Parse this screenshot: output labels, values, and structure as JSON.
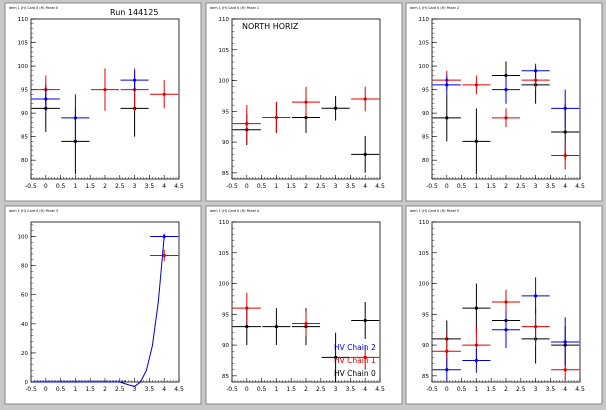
{
  "window": {
    "background": "#c8c8c8",
    "pad_background": "#ffffff",
    "frame_color": "#000000"
  },
  "colors": {
    "black": "#000000",
    "red": "#e00000",
    "blue": "#0000e0",
    "fit": "#0000cc"
  },
  "chart_data": [
    {
      "type": "scatter",
      "pad_title": "dem 1 (H) Card 0 (H) Panel 0",
      "title": "Run 144125",
      "xlim": [
        -0.5,
        4.5
      ],
      "ylim": [
        76,
        110
      ],
      "xticks": [
        "-0.5",
        "0",
        "0.5",
        "1",
        "1.5",
        "2",
        "2.5",
        "3",
        "3.5",
        "4",
        "4.5"
      ],
      "yticks": [
        "80",
        "85",
        "90",
        "95",
        "100",
        "105",
        "110"
      ],
      "series": [
        {
          "color": "black",
          "points": [
            {
              "x": 0,
              "y": 91,
              "yerr": 5
            },
            {
              "x": 1,
              "y": 84,
              "yerr": 7
            },
            {
              "x": 3,
              "y": 91,
              "yerr": 6
            }
          ]
        },
        {
          "color": "red",
          "points": [
            {
              "x": 0,
              "y": 95,
              "yerr": 3
            },
            {
              "x": 2,
              "y": 95,
              "yerr": 4.5
            },
            {
              "x": 3,
              "y": 95,
              "yerr": 4.5
            },
            {
              "x": 4,
              "y": 94,
              "yerr": 3
            }
          ]
        },
        {
          "color": "blue",
          "points": [
            {
              "x": 0,
              "y": 93,
              "yerr": 2.5
            },
            {
              "x": 1,
              "y": 89,
              "yerr": 5
            },
            {
              "x": 3,
              "y": 97,
              "yerr": 2
            }
          ]
        }
      ]
    },
    {
      "type": "scatter",
      "pad_title": "dem 1 (H) Card 0 (H) Panel 1",
      "title": "NORTH HORIZ",
      "xlim": [
        -0.5,
        4.5
      ],
      "ylim": [
        84,
        110
      ],
      "xticks": [
        "-0.5",
        "0",
        "0.5",
        "1",
        "1.5",
        "2",
        "2.5",
        "3",
        "3.5",
        "4",
        "4.5"
      ],
      "yticks": [
        "85",
        "90",
        "95",
        "100",
        "105",
        "110"
      ],
      "series": [
        {
          "color": "black",
          "points": [
            {
              "x": 0,
              "y": 92,
              "yerr": 2.5
            },
            {
              "x": 1,
              "y": 94,
              "yerr": 2.5
            },
            {
              "x": 2,
              "y": 94,
              "yerr": 2.5
            },
            {
              "x": 3,
              "y": 95.5,
              "yerr": 2
            },
            {
              "x": 4,
              "y": 88,
              "yerr": 3
            }
          ]
        },
        {
          "color": "red",
          "points": [
            {
              "x": 0,
              "y": 93,
              "yerr": 3
            },
            {
              "x": 1,
              "y": 94,
              "yerr": 2.5
            },
            {
              "x": 2,
              "y": 96.5,
              "yerr": 2.5
            },
            {
              "x": 4,
              "y": 97,
              "yerr": 2
            }
          ]
        }
      ]
    },
    {
      "type": "scatter",
      "pad_title": "dem 1 (H) Card 0 (H) Panel 2",
      "title": "",
      "xlim": [
        -0.5,
        4.5
      ],
      "ylim": [
        76,
        110
      ],
      "xticks": [
        "-0.5",
        "0",
        "0.5",
        "1",
        "1.5",
        "2",
        "2.5",
        "3",
        "3.5",
        "4",
        "4.5"
      ],
      "yticks": [
        "80",
        "85",
        "90",
        "95",
        "100",
        "105",
        "110"
      ],
      "series": [
        {
          "color": "black",
          "points": [
            {
              "x": 0,
              "y": 89,
              "yerr": 5
            },
            {
              "x": 1,
              "y": 84,
              "yerr": 7
            },
            {
              "x": 2,
              "y": 98,
              "yerr": 3
            },
            {
              "x": 3,
              "y": 96,
              "yerr": 4
            },
            {
              "x": 4,
              "y": 86,
              "yerr": 6
            }
          ]
        },
        {
          "color": "red",
          "points": [
            {
              "x": 0,
              "y": 97,
              "yerr": 2
            },
            {
              "x": 1,
              "y": 96,
              "yerr": 2
            },
            {
              "x": 2,
              "y": 89,
              "yerr": 2
            },
            {
              "x": 3,
              "y": 97,
              "yerr": 2
            },
            {
              "x": 4,
              "y": 81,
              "yerr": 3
            }
          ]
        },
        {
          "color": "blue",
          "points": [
            {
              "x": 0,
              "y": 96,
              "yerr": 2
            },
            {
              "x": 2,
              "y": 95,
              "yerr": 3
            },
            {
              "x": 3,
              "y": 99,
              "yerr": 1.5
            },
            {
              "x": 4,
              "y": 91,
              "yerr": 4
            }
          ]
        }
      ]
    },
    {
      "type": "line",
      "pad_title": "dem 1 (H) Card 0 (H) Panel 3",
      "title": "",
      "xlim": [
        -0.5,
        4.5
      ],
      "ylim": [
        0,
        110
      ],
      "xticks": [
        "-0.5",
        "0",
        "0.5",
        "1",
        "1.5",
        "2",
        "2.5",
        "3",
        "3.5",
        "4",
        "4.5"
      ],
      "yticks": [
        "0",
        "20",
        "40",
        "60",
        "80",
        "100"
      ],
      "series": [
        {
          "color": "red",
          "points": [
            {
              "x": 4,
              "y": 87,
              "yerr": 4
            }
          ]
        },
        {
          "color": "blue",
          "points": [
            {
              "x": 4,
              "y": 100,
              "yerr": 2
            }
          ]
        }
      ],
      "fit": {
        "color": "fit",
        "points": [
          [
            -0.4,
            0
          ],
          [
            0,
            0
          ],
          [
            0.5,
            0
          ],
          [
            1,
            0
          ],
          [
            1.5,
            0
          ],
          [
            2,
            0
          ],
          [
            2.5,
            0
          ],
          [
            2.8,
            -2
          ],
          [
            3.0,
            -3
          ],
          [
            3.2,
            0
          ],
          [
            3.4,
            8
          ],
          [
            3.6,
            25
          ],
          [
            3.8,
            55
          ],
          [
            4.0,
            100
          ]
        ]
      }
    },
    {
      "type": "scatter",
      "pad_title": "dem 1 (H) Card 0 (H) Panel 4",
      "title": "",
      "xlim": [
        -0.5,
        4.5
      ],
      "ylim": [
        84,
        110
      ],
      "xticks": [
        "-0.5",
        "0",
        "0.5",
        "1",
        "1.5",
        "2",
        "2.5",
        "3",
        "3.5",
        "4",
        "4.5"
      ],
      "yticks": [
        "85",
        "90",
        "95",
        "100",
        "105",
        "110"
      ],
      "series": [
        {
          "color": "black",
          "points": [
            {
              "x": 0,
              "y": 93,
              "yerr": 3
            },
            {
              "x": 1,
              "y": 93,
              "yerr": 3
            },
            {
              "x": 2,
              "y": 93,
              "yerr": 3
            },
            {
              "x": 3,
              "y": 88,
              "yerr": 4
            },
            {
              "x": 4,
              "y": 94,
              "yerr": 3
            }
          ]
        },
        {
          "color": "red",
          "points": [
            {
              "x": 0,
              "y": 96,
              "yerr": 2.5
            },
            {
              "x": 2,
              "y": 93.5,
              "yerr": 2
            },
            {
              "x": 4,
              "y": 88,
              "yerr": 2
            }
          ]
        }
      ],
      "legend": {
        "placement": "bottom-right",
        "entries": [
          {
            "label": "HV Chain 2",
            "color": "blue"
          },
          {
            "label": "HV Chain 1",
            "color": "red"
          },
          {
            "label": "HV Chain 0",
            "color": "black"
          }
        ]
      }
    },
    {
      "type": "scatter",
      "pad_title": "dem 1 (H) Card 0 (H) Panel 5",
      "title": "",
      "xlim": [
        -0.5,
        4.5
      ],
      "ylim": [
        84,
        110
      ],
      "xticks": [
        "-0.5",
        "0",
        "0.5",
        "1",
        "1.5",
        "2",
        "2.5",
        "3",
        "3.5",
        "4",
        "4.5"
      ],
      "yticks": [
        "85",
        "90",
        "95",
        "100",
        "105",
        "110"
      ],
      "series": [
        {
          "color": "black",
          "points": [
            {
              "x": 0,
              "y": 91,
              "yerr": 3
            },
            {
              "x": 1,
              "y": 96,
              "yerr": 4
            },
            {
              "x": 2,
              "y": 94,
              "yerr": 3
            },
            {
              "x": 3,
              "y": 91,
              "yerr": 4
            },
            {
              "x": 4,
              "y": 90,
              "yerr": 3
            }
          ]
        },
        {
          "color": "red",
          "points": [
            {
              "x": 0,
              "y": 89,
              "yerr": 3
            },
            {
              "x": 1,
              "y": 90,
              "yerr": 3
            },
            {
              "x": 2,
              "y": 97,
              "yerr": 2
            },
            {
              "x": 3,
              "y": 93,
              "yerr": 3
            },
            {
              "x": 4,
              "y": 86,
              "yerr": 2
            }
          ]
        },
        {
          "color": "blue",
          "points": [
            {
              "x": 0,
              "y": 86,
              "yerr": 2
            },
            {
              "x": 1,
              "y": 87.5,
              "yerr": 2
            },
            {
              "x": 2,
              "y": 92.5,
              "yerr": 3
            },
            {
              "x": 3,
              "y": 98,
              "yerr": 3
            },
            {
              "x": 4,
              "y": 90.5,
              "yerr": 4
            }
          ]
        }
      ]
    }
  ]
}
